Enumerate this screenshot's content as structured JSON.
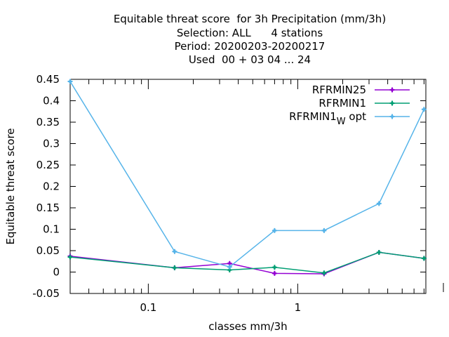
{
  "chart_data": {
    "type": "line",
    "title_lines": [
      "Equitable threat score  for 3h Precipitation (mm/3h)",
      "Selection: ALL      4 stations",
      "Period: 20200203-20200217",
      "Used  00 + 03 04 ... 24"
    ],
    "xlabel": "classes mm/3h",
    "ylabel": "Equitable threat score",
    "x_scale": "log",
    "xlim": [
      0.03,
      7.2
    ],
    "ylim": [
      -0.05,
      0.45
    ],
    "x_tick_labels": [
      {
        "value": 0.1,
        "label": "0.1"
      },
      {
        "value": 1,
        "label": "1"
      }
    ],
    "y_ticks": [
      -0.05,
      0,
      0.05,
      0.1,
      0.15,
      0.2,
      0.25,
      0.3,
      0.35,
      0.4,
      0.45
    ],
    "y_tick_labels": [
      "-0.05",
      "0",
      "0.05",
      "0.1",
      "0.15",
      "0.2",
      "0.25",
      "0.3",
      "0.35",
      "0.4",
      "0.45"
    ],
    "grid": false,
    "legend_position": "top-right",
    "x": [
      0.03,
      0.15,
      0.35,
      0.7,
      1.5,
      3.5,
      7.0
    ],
    "series": [
      {
        "name": "RFRMIN25",
        "color": "#9400d3",
        "values": [
          0.037,
          0.01,
          0.02,
          -0.003,
          -0.004,
          0.046,
          0.032
        ]
      },
      {
        "name": "RFRMIN1",
        "color": "#009e73",
        "values": [
          0.035,
          0.01,
          0.005,
          0.011,
          -0.002,
          0.046,
          0.032
        ]
      },
      {
        "name": "RFRMIN1",
        "name_subscript": "W",
        "name_suffix": " opt",
        "color": "#56b4e9",
        "values": [
          0.445,
          0.048,
          0.012,
          0.097,
          0.097,
          0.16,
          0.38
        ]
      }
    ]
  }
}
